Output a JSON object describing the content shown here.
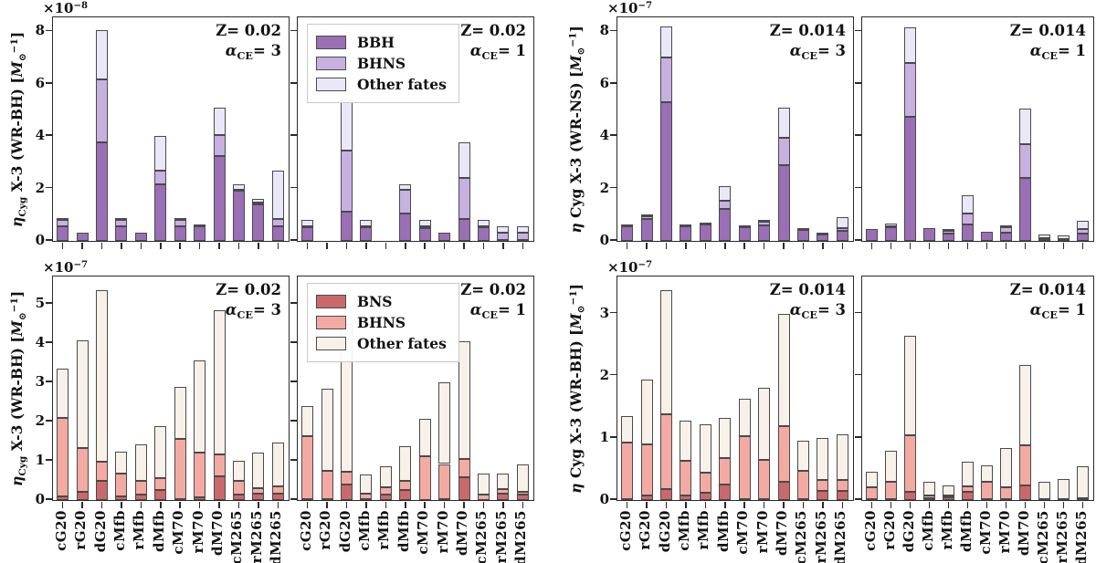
{
  "figure_name": "Cyg X-3 eta rates, stacked bar charts",
  "categories": [
    "cG20",
    "rG20",
    "dG20",
    "cMfb",
    "rMfb",
    "dMfb",
    "cM70",
    "rM70",
    "dM70",
    "cM265",
    "rM265",
    "dM265"
  ],
  "palettes": {
    "purple": {
      "s1": "#9a6fb5",
      "s2": "#c6b1e1",
      "s3": "#eae8f8",
      "edge": "#4a4a4a"
    },
    "red": {
      "s1": "#c9696c",
      "s2": "#f3aaa3",
      "s3": "#f8f1e9",
      "edge": "#4a4a4a"
    }
  },
  "chart_data": [
    {
      "id": "top-left",
      "type": "stacked-bar",
      "palette": "purple",
      "series": [
        "BBH",
        "BHNS",
        "Other fates"
      ],
      "offset": {
        "base": "×10",
        "exp": "−8"
      },
      "yticks": [
        "0",
        "2",
        "4",
        "6",
        "8"
      ],
      "ytick_values": [
        0,
        2,
        4,
        6,
        8
      ],
      "ymax": 8.5,
      "ylabel_parts": [
        {
          "t": "η",
          "s": "i"
        },
        {
          "t": "Cyg",
          "s": "sub"
        },
        {
          "t": " X-3 (WR-BH) [",
          "s": "n"
        },
        {
          "t": "M",
          "s": "i"
        },
        {
          "t": "⊙",
          "s": "sub"
        },
        {
          "t": "−1",
          "s": "sup"
        },
        {
          "t": "]",
          "s": "n"
        }
      ],
      "panels": [
        {
          "annotation": {
            "z": "Z= 0.02",
            "alpha": "α",
            "alpha_sub": "CE",
            "alpha_rest": "= 3"
          },
          "show_legend": false,
          "stacks": [
            [
              0.55,
              0.8,
              0.82
            ],
            [
              0.3,
              0.3,
              0.3
            ],
            [
              3.75,
              6.15,
              8.05
            ],
            [
              0.55,
              0.8,
              0.82
            ],
            [
              0.3,
              0.3,
              0.3
            ],
            [
              2.15,
              2.7,
              4.0
            ],
            [
              0.55,
              0.8,
              0.82
            ],
            [
              0.55,
              0.55,
              0.57
            ],
            [
              3.25,
              4.05,
              5.1
            ],
            [
              1.9,
              1.95,
              2.15
            ],
            [
              1.4,
              1.45,
              1.62
            ],
            [
              0.55,
              0.85,
              2.7
            ]
          ]
        },
        {
          "annotation": {
            "z": "Z= 0.02",
            "alpha": "α",
            "alpha_sub": "CE",
            "alpha_rest": "= 1"
          },
          "show_legend": true,
          "stacks": [
            [
              0.52,
              0.55,
              0.8
            ],
            [
              0,
              0,
              0
            ],
            [
              1.1,
              3.45,
              5.4
            ],
            [
              0.52,
              0.55,
              0.8
            ],
            [
              0,
              0,
              0
            ],
            [
              1.05,
              1.95,
              2.15
            ],
            [
              0.5,
              0.55,
              0.8
            ],
            [
              0.3,
              0.3,
              0.3
            ],
            [
              0.85,
              2.4,
              3.75
            ],
            [
              0.52,
              0.55,
              0.8
            ],
            [
              0.02,
              0.3,
              0.55
            ],
            [
              0.02,
              0.3,
              0.55
            ]
          ]
        }
      ]
    },
    {
      "id": "top-right",
      "type": "stacked-bar",
      "palette": "purple",
      "series": [
        "BBH",
        "BHNS",
        "Other fates"
      ],
      "offset": {
        "base": "×10",
        "exp": "−7"
      },
      "yticks": [
        "0",
        "2",
        "4",
        "6",
        "8"
      ],
      "ytick_values": [
        0,
        2,
        4,
        6,
        8
      ],
      "ymax": 8.5,
      "ylabel_parts": [
        {
          "t": "η",
          "s": "i"
        },
        {
          "t": " Cyg X-3 (WR-NS) [",
          "s": "n"
        },
        {
          "t": "M",
          "s": "i"
        },
        {
          "t": "⊙",
          "s": "sub"
        },
        {
          "t": "−1",
          "s": "sup"
        },
        {
          "t": "]",
          "s": "n"
        }
      ],
      "panels": [
        {
          "annotation": {
            "z": "Z= 0.014",
            "alpha": "α",
            "alpha_sub": "CE",
            "alpha_rest": "= 3"
          },
          "show_legend": false,
          "stacks": [
            [
              0.55,
              0.55,
              0.58
            ],
            [
              0.85,
              0.93,
              1.02
            ],
            [
              5.3,
              7.0,
              8.2
            ],
            [
              0.55,
              0.55,
              0.57
            ],
            [
              0.62,
              0.64,
              0.7
            ],
            [
              1.22,
              1.52,
              2.08
            ],
            [
              0.53,
              0.53,
              0.55
            ],
            [
              0.58,
              0.72,
              0.8
            ],
            [
              2.9,
              3.95,
              5.1
            ],
            [
              0.42,
              0.43,
              0.48
            ],
            [
              0.23,
              0.25,
              0.33
            ],
            [
              0.38,
              0.48,
              0.9
            ]
          ]
        },
        {
          "annotation": {
            "z": "Z= 0.014",
            "alpha": "α",
            "alpha_sub": "CE",
            "alpha_rest": "= 1"
          },
          "show_legend": false,
          "stacks": [
            [
              0.45,
              0.45,
              0.45
            ],
            [
              0.52,
              0.55,
              0.65
            ],
            [
              4.75,
              6.8,
              8.15
            ],
            [
              0.5,
              0.5,
              0.5
            ],
            [
              0.28,
              0.4,
              0.42
            ],
            [
              0.62,
              1.05,
              1.75
            ],
            [
              0.35,
              0.35,
              0.35
            ],
            [
              0.33,
              0.52,
              0.6
            ],
            [
              2.4,
              3.7,
              5.05
            ],
            [
              0.08,
              0.1,
              0.25
            ],
            [
              0.05,
              0.07,
              0.2
            ],
            [
              0.28,
              0.45,
              0.75
            ]
          ]
        }
      ]
    },
    {
      "id": "bottom-left",
      "type": "stacked-bar",
      "palette": "red",
      "series": [
        "BNS",
        "BHNS",
        "Other fates"
      ],
      "offset": {
        "base": "×10",
        "exp": "−7"
      },
      "yticks": [
        "0",
        "1",
        "2",
        "3",
        "4",
        "5"
      ],
      "ytick_values": [
        0,
        1,
        2,
        3,
        4,
        5
      ],
      "ymax": 5.68,
      "ylabel_parts": [
        {
          "t": "η",
          "s": "i"
        },
        {
          "t": "Cyg",
          "s": "sub"
        },
        {
          "t": " X-3 (WR-BH) [",
          "s": "n"
        },
        {
          "t": "M",
          "s": "i"
        },
        {
          "t": "⊙",
          "s": "sub"
        },
        {
          "t": "−1",
          "s": "sup"
        },
        {
          "t": "]",
          "s": "n"
        }
      ],
      "panels": [
        {
          "annotation": {
            "z": "Z= 0.02",
            "alpha": "α",
            "alpha_sub": "CE",
            "alpha_rest": "= 3"
          },
          "show_legend": false,
          "stacks": [
            [
              0.1,
              2.1,
              3.36
            ],
            [
              0.22,
              1.33,
              4.07
            ],
            [
              0.5,
              0.97,
              5.35
            ],
            [
              0.1,
              0.67,
              1.24
            ],
            [
              0.14,
              0.5,
              1.43
            ],
            [
              0.25,
              0.55,
              1.88
            ],
            [
              0.02,
              1.57,
              2.88
            ],
            [
              0.07,
              1.22,
              3.57
            ],
            [
              0.6,
              1.17,
              4.85
            ],
            [
              0.14,
              0.5,
              1.0
            ],
            [
              0.17,
              0.3,
              1.22
            ],
            [
              0.17,
              0.35,
              1.46
            ]
          ]
        },
        {
          "annotation": {
            "z": "Z= 0.02",
            "alpha": "α",
            "alpha_sub": "CE",
            "alpha_rest": "= 1"
          },
          "show_legend": true,
          "stacks": [
            [
              0.02,
              1.62,
              2.4
            ],
            [
              0.02,
              0.74,
              2.85
            ],
            [
              0.4,
              0.73,
              4.5
            ],
            [
              0.03,
              0.17,
              0.65
            ],
            [
              0.15,
              0.32,
              0.86
            ],
            [
              0.26,
              0.5,
              1.38
            ],
            [
              0.01,
              1.11,
              2.08
            ],
            [
              0.03,
              0.92,
              3.0
            ],
            [
              0.58,
              1.04,
              4.05
            ],
            [
              0.01,
              0.13,
              0.67
            ],
            [
              0.16,
              0.28,
              0.67
            ],
            [
              0.13,
              0.2,
              0.9
            ]
          ]
        }
      ]
    },
    {
      "id": "bottom-right",
      "type": "stacked-bar",
      "palette": "red",
      "series": [
        "BNS",
        "BHNS",
        "Other fates"
      ],
      "offset": {
        "base": "×10",
        "exp": "−7"
      },
      "yticks": [
        "0",
        "1",
        "2",
        "3"
      ],
      "ytick_values": [
        0,
        1,
        2,
        3
      ],
      "ymax": 3.58,
      "ylabel_parts": [
        {
          "t": "η",
          "s": "i"
        },
        {
          "t": " Cyg X-3 (WR-BH) [",
          "s": "n"
        },
        {
          "t": "M",
          "s": "i"
        },
        {
          "t": "⊙",
          "s": "sub"
        },
        {
          "t": "−1",
          "s": "sup"
        },
        {
          "t": "]",
          "s": "n"
        }
      ],
      "panels": [
        {
          "annotation": {
            "z": "Z= 0.014",
            "alpha": "α",
            "alpha_sub": "CE",
            "alpha_rest": "= 3"
          },
          "show_legend": false,
          "stacks": [
            [
              0.02,
              0.93,
              1.35
            ],
            [
              0.07,
              0.9,
              1.93
            ],
            [
              0.17,
              1.38,
              3.37
            ],
            [
              0.07,
              0.63,
              1.27
            ],
            [
              0.12,
              0.44,
              1.22
            ],
            [
              0.25,
              0.68,
              1.32
            ],
            [
              0.02,
              1.03,
              1.63
            ],
            [
              0.02,
              0.65,
              1.8
            ],
            [
              0.3,
              1.19,
              3.0
            ],
            [
              0.02,
              0.47,
              0.95
            ],
            [
              0.14,
              0.33,
              1.0
            ],
            [
              0.14,
              0.33,
              1.05
            ]
          ]
        },
        {
          "annotation": {
            "z": "Z= 0.014",
            "alpha": "α",
            "alpha_sub": "CE",
            "alpha_rest": "= 1"
          },
          "show_legend": false,
          "stacks": [
            [
              0.01,
              0.21,
              0.45
            ],
            [
              0.01,
              0.29,
              0.8
            ],
            [
              0.13,
              1.04,
              2.64
            ],
            [
              0.03,
              0.08,
              0.29
            ],
            [
              0.04,
              0.07,
              0.24
            ],
            [
              0.13,
              0.22,
              0.61
            ],
            [
              0.01,
              0.29,
              0.56
            ],
            [
              0.01,
              0.21,
              0.84
            ],
            [
              0.24,
              0.88,
              2.17
            ],
            [
              0.02,
              0.02,
              0.29
            ],
            [
              0.02,
              0.02,
              0.34
            ],
            [
              0.02,
              0.03,
              0.54
            ]
          ]
        }
      ]
    }
  ]
}
